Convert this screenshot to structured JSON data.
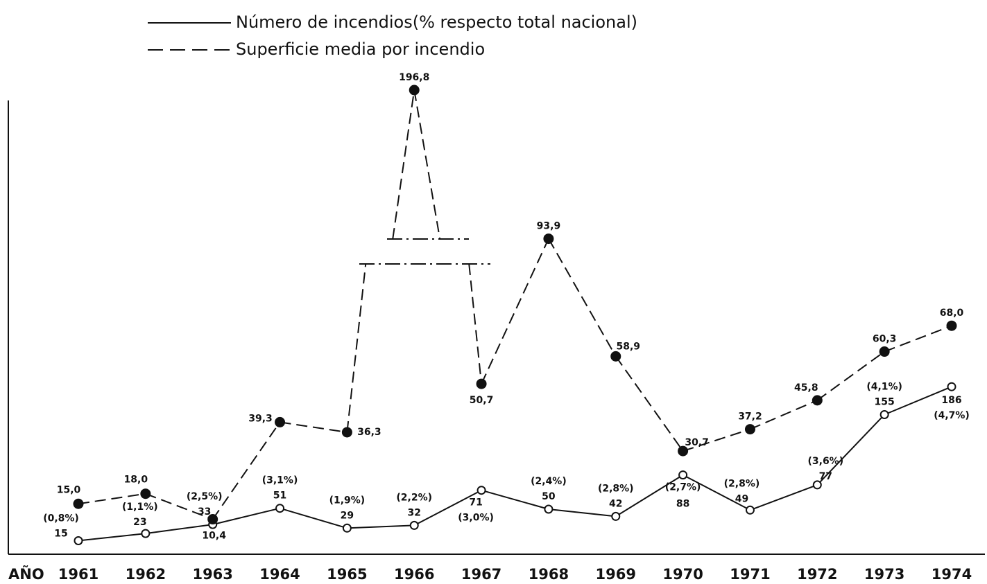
{
  "chart_data": {
    "type": "line",
    "x_label": "AÑO",
    "categories": [
      "1961",
      "1962",
      "1963",
      "1964",
      "1965",
      "1966",
      "1967",
      "1968",
      "1969",
      "1970",
      "1971",
      "1972",
      "1973",
      "1974"
    ],
    "series": [
      {
        "name": "Número de incendios(% respecto total nacional)",
        "color": "#111111",
        "style": "solid",
        "marker": "open",
        "values": [
          15,
          23,
          33,
          51,
          29,
          32,
          71,
          50,
          42,
          88,
          49,
          77,
          155,
          186
        ],
        "annotations": [
          "(0,8%)",
          "(1,1%)",
          "(2,5%)",
          "(3,1%)",
          "(1,9%)",
          "(2,2%)",
          "(3,0%)",
          "(2,4%)",
          "(2,8%)",
          "(2,7%)",
          "(2,8%)",
          "(3,6%)",
          "(4,1%)",
          "(4,7%)"
        ]
      },
      {
        "name": "Superficie media por incendio",
        "color": "#111111",
        "style": "dashed",
        "marker": "filled",
        "values": [
          15.0,
          18.0,
          10.4,
          39.3,
          36.3,
          196.8,
          50.7,
          93.9,
          58.9,
          30.7,
          37.2,
          45.8,
          60.3,
          68.0
        ],
        "value_labels": [
          "15,0",
          "18,0",
          "10,4",
          "39,3",
          "36,3",
          "196,8",
          "50,7",
          "93,9",
          "58,9",
          "30,7",
          "37,2",
          "45,8",
          "60,3",
          "68,0"
        ]
      }
    ]
  }
}
